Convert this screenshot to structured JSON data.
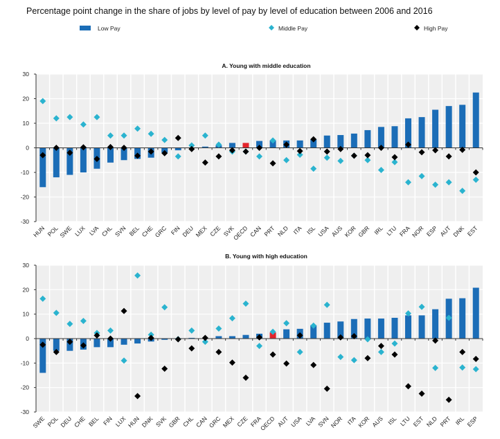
{
  "title": "Percentage point change in the share of jobs by level of pay by level of education between 2006 and 2016",
  "colors": {
    "low": "#1b6db7",
    "oecd": "#e3242b",
    "middle": "#2ab3cf",
    "high": "#000000",
    "plot_bg": "#efefef"
  },
  "chart_data": [
    {
      "type": "bar",
      "title": "A. Young with middle education",
      "ylim": [
        -30,
        30
      ],
      "yticks": [
        30,
        20,
        10,
        0,
        -10,
        -20,
        -30
      ],
      "grid": true,
      "legend": "top",
      "categories": [
        "HUN",
        "POL",
        "SWE",
        "LUX",
        "LVA",
        "CHL",
        "SVN",
        "BEL",
        "CHE",
        "GRC",
        "FIN",
        "DEU",
        "MEX",
        "CZE",
        "SVK",
        "OECD",
        "CAN",
        "PRT",
        "NLD",
        "ITA",
        "ISL",
        "USA",
        "AUS",
        "KOR",
        "GBR",
        "IRL",
        "LTU",
        "FRA",
        "NOR",
        "ESP",
        "AUT",
        "DNK",
        "EST"
      ],
      "series": [
        {
          "name": "Low Pay",
          "mark": "bar",
          "values": [
            -16,
            -12,
            -11,
            -10,
            -8.5,
            -6,
            -5,
            -4.5,
            -4,
            -2,
            -1,
            0,
            0.5,
            1,
            2,
            2,
            2.8,
            3,
            3,
            3,
            3.5,
            5,
            5.2,
            5.8,
            7.2,
            8.5,
            8.8,
            12,
            12.5,
            15.5,
            17,
            17.5,
            22.5
          ]
        },
        {
          "name": "Middle Pay",
          "mark": "diamond",
          "values": [
            19,
            12,
            12.5,
            9.5,
            12.5,
            5,
            5,
            7.8,
            5.7,
            3.2,
            -3.5,
            1,
            5,
            1.3,
            -1.5,
            -1.5,
            -3.5,
            3,
            -5,
            -2.8,
            -8.5,
            -4,
            -5.3,
            -3.2,
            -5,
            -9,
            -5.8,
            -14,
            -11.5,
            -15,
            -14,
            -17.5,
            -13
          ]
        },
        {
          "name": "High Pay",
          "mark": "diamond",
          "values": [
            -3,
            0,
            -2,
            0.2,
            -4.5,
            0.3,
            0,
            -3.2,
            -1.5,
            -2.2,
            4,
            -0.5,
            -6,
            -3.5,
            -1,
            -1.5,
            0,
            -6.3,
            1.3,
            -1.3,
            3.5,
            -1.5,
            -0.5,
            -3.2,
            -3,
            0,
            -3.8,
            1.3,
            -1.8,
            -1,
            -3.5,
            -0.8,
            -10
          ]
        }
      ]
    },
    {
      "type": "bar",
      "title": "B. Young with high education",
      "ylim": [
        -30,
        30
      ],
      "yticks": [
        30,
        20,
        10,
        0,
        -10,
        -20,
        -30
      ],
      "grid": true,
      "categories": [
        "SWE",
        "POL",
        "DEU",
        "CHE",
        "BEL",
        "FIN",
        "LUX",
        "HUN",
        "DNK",
        "SVK",
        "GBR",
        "CHL",
        "CAN",
        "GRC",
        "MEX",
        "CZE",
        "FRA",
        "OECD",
        "AUT",
        "USA",
        "LVA",
        "SVN",
        "NOR",
        "ITA",
        "KOR",
        "AUS",
        "ISL",
        "LTU",
        "EST",
        "NLD",
        "PRT",
        "IRL",
        "ESP"
      ],
      "series": [
        {
          "name": "Low Pay",
          "mark": "bar",
          "values": [
            -14,
            -5,
            -5,
            -4.5,
            -3.5,
            -3.5,
            -2.5,
            -2,
            -1.2,
            -0.5,
            0,
            0.3,
            0,
            1,
            1,
            1.5,
            2,
            2.5,
            3.8,
            4,
            5.5,
            6.5,
            7,
            8,
            8.2,
            8.2,
            8.5,
            9.5,
            9.5,
            12,
            16.3,
            16.5,
            20.8
          ]
        },
        {
          "name": "Middle Pay",
          "mark": "diamond",
          "values": [
            16.3,
            10.5,
            6,
            7.2,
            2.3,
            3.3,
            -9,
            25.8,
            1.6,
            12.8,
            -0.2,
            3.3,
            -1.3,
            4.1,
            8.3,
            14.3,
            -3,
            2.8,
            6.3,
            -5.5,
            5.3,
            13.8,
            -7.5,
            -8.8,
            -0.3,
            -5.5,
            -2,
            10.3,
            13,
            -12,
            8.5,
            -11.8,
            -12.5
          ]
        },
        {
          "name": "High Pay",
          "mark": "diamond",
          "values": [
            -2.5,
            -5.5,
            -1.3,
            -2.8,
            1.3,
            0,
            11.3,
            -23.5,
            0.3,
            -12.3,
            -0.3,
            -4,
            0.3,
            -5.5,
            -9.8,
            -16,
            0.5,
            -6.5,
            -10.2,
            1.3,
            -10.8,
            -20.5,
            0.5,
            1,
            -8,
            -3,
            -6.5,
            -19.5,
            -22.5,
            -0.8,
            -25,
            -5.5,
            -8.3
          ]
        }
      ]
    }
  ]
}
